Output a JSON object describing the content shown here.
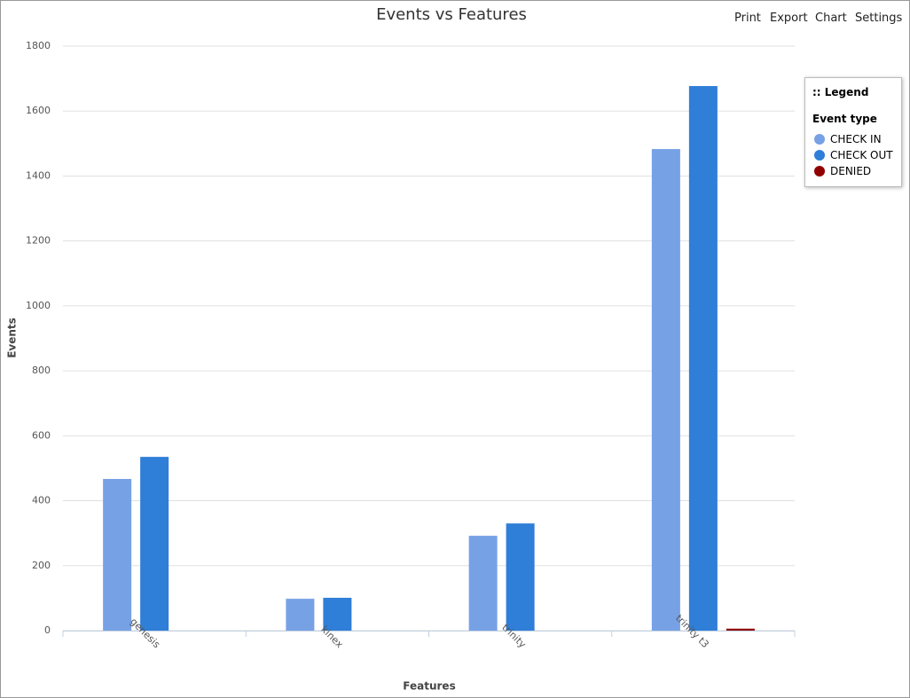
{
  "toolbar": [
    "Print",
    "Export",
    "Chart",
    "Settings"
  ],
  "chart_data": {
    "type": "bar",
    "title": "Events vs Features",
    "x_label": "Features",
    "y_label": "Events",
    "categories": [
      "genesis",
      "kinex",
      "trinity",
      "trinity t3"
    ],
    "series": [
      {
        "name": "CHECK IN",
        "color": "#77a1e5",
        "values": [
          467,
          98,
          292,
          1483
        ]
      },
      {
        "name": "CHECK OUT",
        "color": "#2f7ed8",
        "values": [
          535,
          101,
          330,
          1677
        ]
      },
      {
        "name": "DENIED",
        "color": "#910000",
        "values": [
          0,
          0,
          0,
          6
        ]
      }
    ],
    "ylim": [
      0,
      1800
    ],
    "yticks": [
      0,
      200,
      400,
      600,
      800,
      1000,
      1200,
      1400,
      1600,
      1800
    ],
    "grid": true,
    "legend_position": "right",
    "legend_title": ":: Legend",
    "legend_subtitle": "Event type"
  }
}
